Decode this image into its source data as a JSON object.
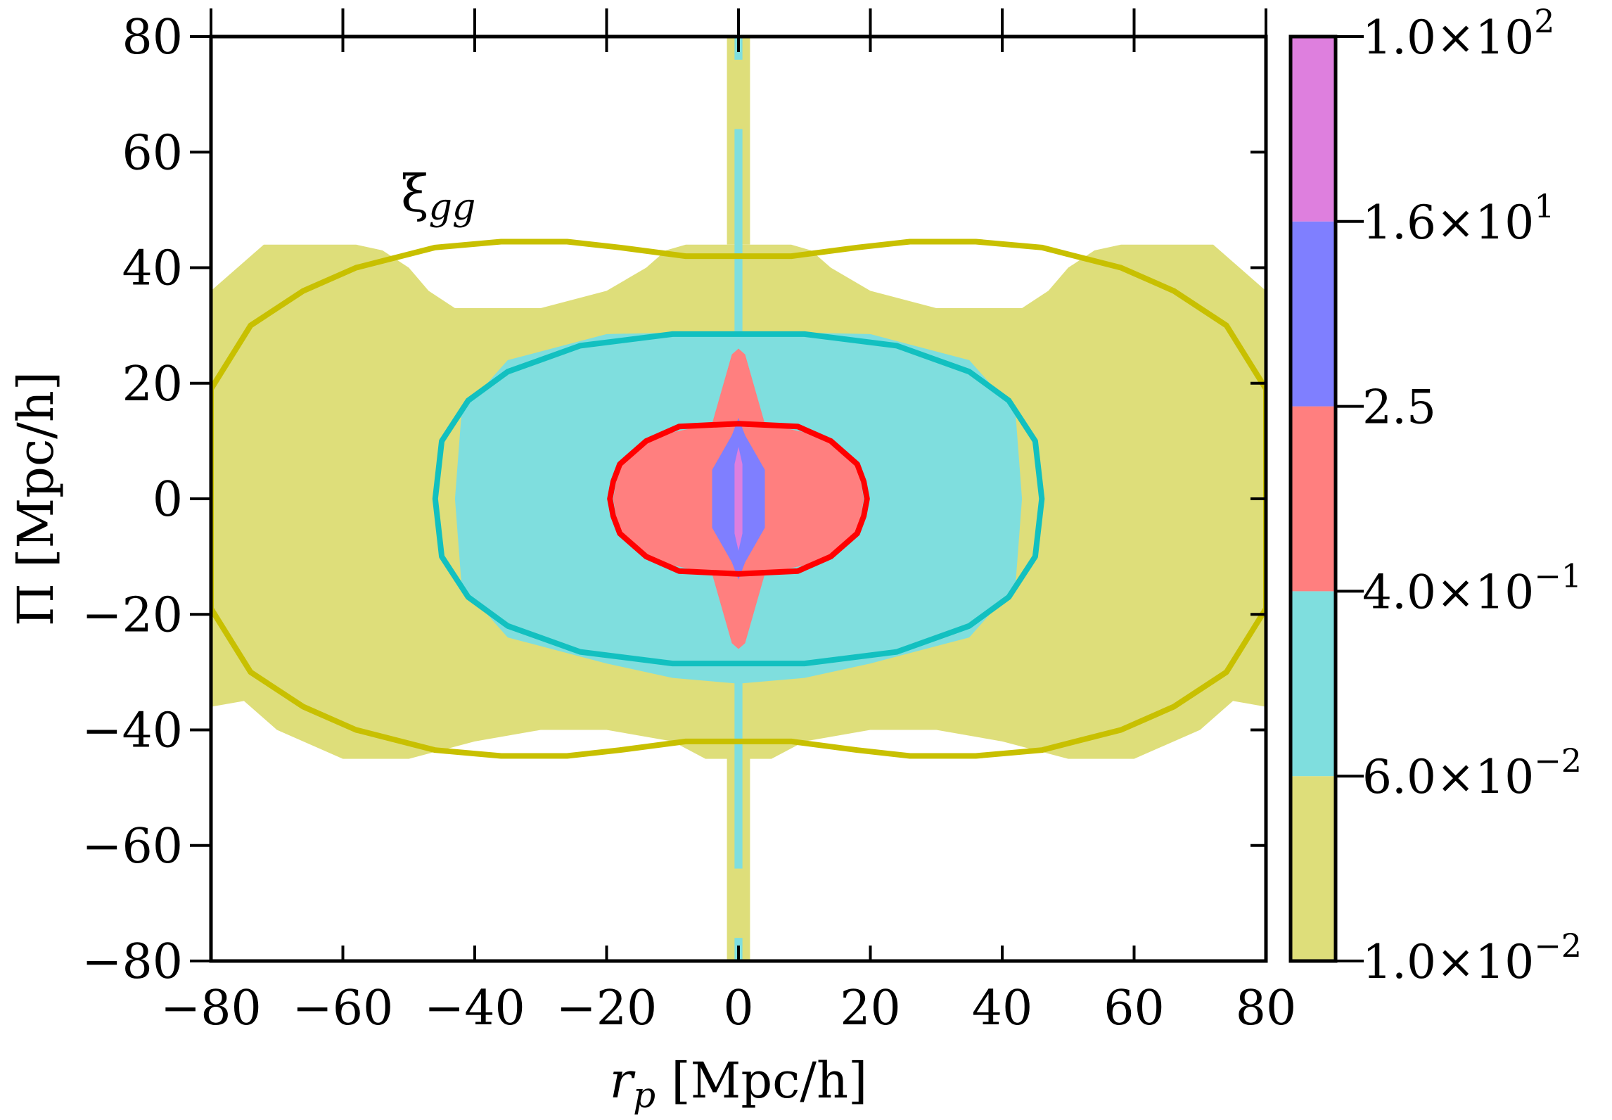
{
  "chart_data": {
    "type": "heatmap",
    "title": "",
    "annotation": {
      "symbol": "ξ",
      "subscript": "gg"
    },
    "xlabel": {
      "var": "r",
      "sub": "p",
      "unit": " [Mpc/h]"
    },
    "ylabel": "Π [Mpc/h]",
    "xlim": [
      -80,
      80
    ],
    "ylim": [
      -80,
      80
    ],
    "xticks": [
      -80,
      -60,
      -40,
      -20,
      0,
      20,
      40,
      60,
      80
    ],
    "yticks": [
      -80,
      -60,
      -40,
      -20,
      0,
      20,
      40,
      60,
      80
    ],
    "xtick_labels": [
      "−80",
      "−60",
      "−40",
      "−20",
      "0",
      "20",
      "40",
      "60",
      "80"
    ],
    "ytick_labels": [
      "−80",
      "−60",
      "−40",
      "−20",
      "0",
      "20",
      "40",
      "60",
      "80"
    ],
    "colorbar": {
      "levels": [
        0.01,
        0.06,
        0.4,
        2.5,
        16,
        100
      ],
      "labels": [
        {
          "mant": "1.0×10",
          "exp": "−2"
        },
        {
          "mant": "6.0×10",
          "exp": "−2"
        },
        {
          "mant": "4.0×10",
          "exp": "−1"
        },
        {
          "mant": "2.5",
          "exp": ""
        },
        {
          "mant": "1.6×10",
          "exp": "1"
        },
        {
          "mant": "1.0×10",
          "exp": "2"
        }
      ],
      "colors": [
        "#dede7a",
        "#7fdede",
        "#ff7f7f",
        "#7f7fff",
        "#de7fde"
      ]
    },
    "filled_regions": [
      {
        "level": "1.0×10^-2 – 6.0×10^-2",
        "color": "#dede7a",
        "outline": [
          [
            -80,
            36
          ],
          [
            -72,
            44
          ],
          [
            -58,
            44
          ],
          [
            -54,
            43
          ],
          [
            -50,
            40
          ],
          [
            -47,
            36
          ],
          [
            -43,
            33
          ],
          [
            -38,
            33
          ],
          [
            -30,
            33
          ],
          [
            -20,
            36
          ],
          [
            -14,
            40
          ],
          [
            -11,
            43
          ],
          [
            -8,
            44
          ],
          [
            -4,
            44
          ],
          [
            -2,
            44
          ],
          [
            2,
            44
          ],
          [
            4,
            44
          ],
          [
            8,
            44
          ],
          [
            11,
            43
          ],
          [
            14,
            40
          ],
          [
            20,
            36
          ],
          [
            30,
            33
          ],
          [
            38,
            33
          ],
          [
            43,
            33
          ],
          [
            47,
            36
          ],
          [
            50,
            40
          ],
          [
            54,
            43
          ],
          [
            58,
            44
          ],
          [
            72,
            44
          ],
          [
            80,
            36
          ],
          [
            80,
            -36
          ],
          [
            75,
            -35
          ],
          [
            70,
            -40
          ],
          [
            60,
            -45
          ],
          [
            50,
            -45
          ],
          [
            40,
            -42
          ],
          [
            30,
            -40
          ],
          [
            20,
            -40
          ],
          [
            10,
            -42
          ],
          [
            5,
            -45
          ],
          [
            0,
            -45
          ],
          [
            -5,
            -45
          ],
          [
            -10,
            -42
          ],
          [
            -20,
            -40
          ],
          [
            -30,
            -40
          ],
          [
            -40,
            -42
          ],
          [
            -50,
            -45
          ],
          [
            -60,
            -45
          ],
          [
            -70,
            -40
          ],
          [
            -75,
            -35
          ],
          [
            -80,
            -36
          ]
        ]
      },
      {
        "level": "6.0×10^-2 – 4.0×10^-1",
        "color": "#7fdede",
        "outline": [
          [
            -43,
            0
          ],
          [
            -42,
            15
          ],
          [
            -35,
            24
          ],
          [
            -20,
            28.5
          ],
          [
            0,
            29
          ],
          [
            20,
            28.5
          ],
          [
            35,
            24
          ],
          [
            42,
            15
          ],
          [
            43,
            0
          ],
          [
            42,
            -15
          ],
          [
            35,
            -24
          ],
          [
            20,
            -28.5
          ],
          [
            10,
            -31
          ],
          [
            0,
            -32
          ],
          [
            -10,
            -31
          ],
          [
            -20,
            -28.5
          ],
          [
            -35,
            -24
          ],
          [
            -42,
            -15
          ]
        ]
      },
      {
        "level": "4.0×10^-1 – 2.5",
        "color": "#ff7f7f",
        "outline": [
          [
            -19,
            0
          ],
          [
            -18,
            6.5
          ],
          [
            -12,
            11
          ],
          [
            -4,
            13
          ],
          [
            -1,
            25
          ],
          [
            0,
            26
          ],
          [
            1,
            25
          ],
          [
            4,
            13
          ],
          [
            12,
            11
          ],
          [
            18,
            6.5
          ],
          [
            19,
            0
          ],
          [
            18,
            -6.5
          ],
          [
            12,
            -11
          ],
          [
            4,
            -13
          ],
          [
            1,
            -25
          ],
          [
            0,
            -26
          ],
          [
            -1,
            -25
          ],
          [
            -4,
            -13
          ],
          [
            -12,
            -11
          ],
          [
            -18,
            -6.5
          ]
        ]
      },
      {
        "level": "2.5 – 1.6×10^1",
        "color": "#7f7fff",
        "outline": [
          [
            -4,
            5
          ],
          [
            -1,
            11
          ],
          [
            0,
            14
          ],
          [
            1,
            11
          ],
          [
            4,
            5
          ],
          [
            4,
            -5
          ],
          [
            1,
            -11
          ],
          [
            0,
            -14
          ],
          [
            -1,
            -11
          ],
          [
            -4,
            -5
          ]
        ]
      },
      {
        "level": "1.6×10^1 – 1.0×10^2",
        "color": "#de7fde",
        "outline": [
          [
            -0.6,
            6
          ],
          [
            0,
            9
          ],
          [
            0.6,
            6
          ],
          [
            0.6,
            -6
          ],
          [
            0,
            -9
          ],
          [
            -0.6,
            -6
          ]
        ]
      }
    ],
    "contour_lines": [
      {
        "level": "1.0×10^-2",
        "color": "#c8c000",
        "points": [
          [
            -80,
            19
          ],
          [
            -74,
            30
          ],
          [
            -66,
            36
          ],
          [
            -58,
            40
          ],
          [
            -46,
            43.5
          ],
          [
            -36,
            44.5
          ],
          [
            -26,
            44.5
          ],
          [
            -18,
            43.5
          ],
          [
            -8,
            42
          ],
          [
            0,
            42
          ],
          [
            8,
            42
          ],
          [
            18,
            43.5
          ],
          [
            26,
            44.5
          ],
          [
            36,
            44.5
          ],
          [
            46,
            43.5
          ],
          [
            58,
            40
          ],
          [
            66,
            36
          ],
          [
            74,
            30
          ],
          [
            80,
            19
          ],
          [
            80,
            -19
          ],
          [
            74,
            -30
          ],
          [
            66,
            -36
          ],
          [
            58,
            -40
          ],
          [
            46,
            -43.5
          ],
          [
            36,
            -44.5
          ],
          [
            26,
            -44.5
          ],
          [
            18,
            -43.5
          ],
          [
            8,
            -42
          ],
          [
            0,
            -42
          ],
          [
            -8,
            -42
          ],
          [
            -18,
            -43.5
          ],
          [
            -26,
            -44.5
          ],
          [
            -36,
            -44.5
          ],
          [
            -46,
            -43.5
          ],
          [
            -58,
            -40
          ],
          [
            -66,
            -36
          ],
          [
            -74,
            -30
          ],
          [
            -80,
            -19
          ]
        ]
      },
      {
        "level": "6.0×10^-2",
        "color": "#12c0c0",
        "points": [
          [
            -46,
            0
          ],
          [
            -45,
            10
          ],
          [
            -41,
            17
          ],
          [
            -35,
            22
          ],
          [
            -24,
            26.5
          ],
          [
            -10,
            28.5
          ],
          [
            0,
            28.5
          ],
          [
            10,
            28.5
          ],
          [
            24,
            26.5
          ],
          [
            35,
            22
          ],
          [
            41,
            17
          ],
          [
            45,
            10
          ],
          [
            46,
            0
          ],
          [
            45,
            -10
          ],
          [
            41,
            -17
          ],
          [
            35,
            -22
          ],
          [
            24,
            -26.5
          ],
          [
            10,
            -28.5
          ],
          [
            0,
            -28.5
          ],
          [
            -10,
            -28.5
          ],
          [
            -24,
            -26.5
          ],
          [
            -35,
            -22
          ],
          [
            -41,
            -17
          ],
          [
            -45,
            -10
          ]
        ]
      },
      {
        "level": "4.0×10^-1",
        "color": "#ff0000",
        "points": [
          [
            -19.5,
            0
          ],
          [
            -19,
            3
          ],
          [
            -18,
            6
          ],
          [
            -14,
            10
          ],
          [
            -9,
            12.5
          ],
          [
            0,
            13
          ],
          [
            9,
            12.5
          ],
          [
            14,
            10
          ],
          [
            18,
            6
          ],
          [
            19,
            3
          ],
          [
            19.5,
            0
          ],
          [
            19,
            -3
          ],
          [
            18,
            -6
          ],
          [
            14,
            -10
          ],
          [
            9,
            -12.5
          ],
          [
            0,
            -13
          ],
          [
            -9,
            -12.5
          ],
          [
            -14,
            -10
          ],
          [
            -18,
            -6
          ],
          [
            -19,
            -3
          ]
        ]
      }
    ]
  }
}
